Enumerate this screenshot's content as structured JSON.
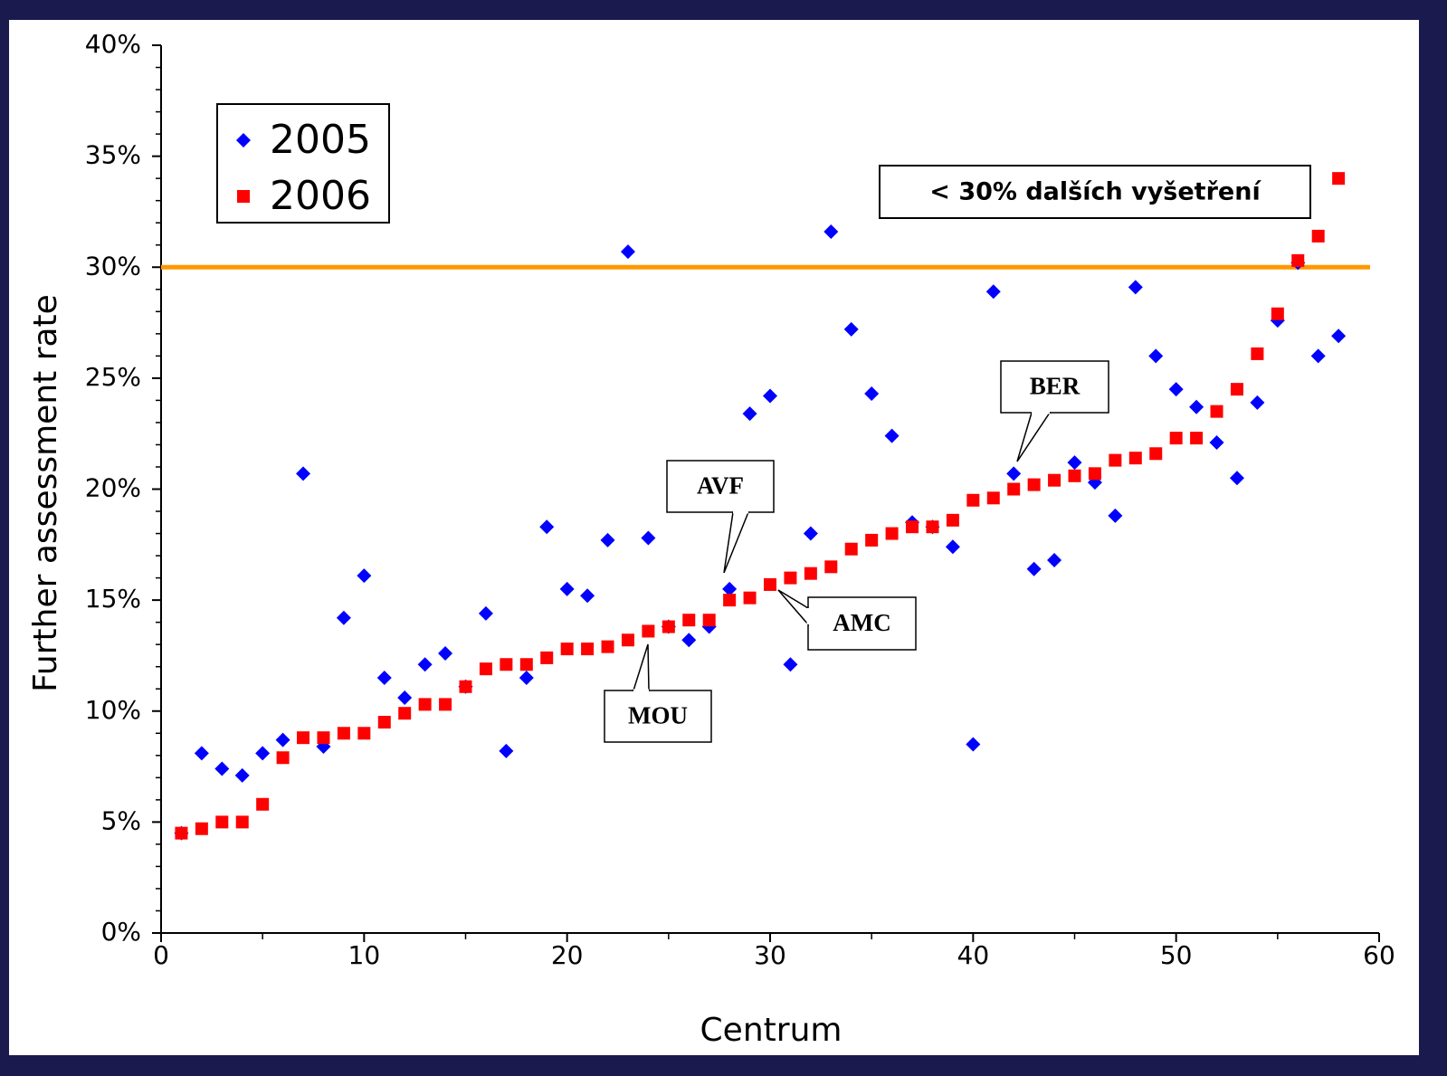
{
  "chart_data": {
    "type": "scatter",
    "xlabel": "Centrum",
    "ylabel": "Further assessment rate",
    "x": [
      1,
      2,
      3,
      4,
      5,
      6,
      7,
      8,
      9,
      10,
      11,
      12,
      13,
      14,
      15,
      16,
      17,
      18,
      19,
      20,
      21,
      22,
      23,
      24,
      25,
      26,
      27,
      28,
      29,
      30,
      31,
      32,
      33,
      34,
      35,
      36,
      37,
      38,
      39,
      40,
      41,
      42,
      43,
      44,
      45,
      46,
      47,
      48,
      49,
      50,
      51,
      52,
      53,
      54,
      55,
      56,
      57,
      58
    ],
    "series": [
      {
        "name": "2005",
        "color": "#0000ff",
        "marker": "diamond",
        "values": [
          4.5,
          8.1,
          7.4,
          7.1,
          8.1,
          8.7,
          20.7,
          8.4,
          14.2,
          16.1,
          11.5,
          10.6,
          12.1,
          12.6,
          11.1,
          14.4,
          8.2,
          11.5,
          18.3,
          15.5,
          15.2,
          17.7,
          30.7,
          17.8,
          13.8,
          13.2,
          13.8,
          15.5,
          23.4,
          24.2,
          12.1,
          18.0,
          31.6,
          27.2,
          24.3,
          22.4,
          18.5,
          18.3,
          17.4,
          8.5,
          28.9,
          20.7,
          16.4,
          16.8,
          21.2,
          20.3,
          18.8,
          29.1,
          26.0,
          24.5,
          23.7,
          22.1,
          20.5,
          23.9,
          27.6,
          30.2,
          26.0,
          26.9
        ]
      },
      {
        "name": "2006",
        "color": "#ff0000",
        "marker": "square",
        "values": [
          4.5,
          4.7,
          5.0,
          5.0,
          5.8,
          7.9,
          8.8,
          8.8,
          9.0,
          9.0,
          9.5,
          9.9,
          10.3,
          10.3,
          11.1,
          11.9,
          12.1,
          12.1,
          12.4,
          12.8,
          12.8,
          12.9,
          13.2,
          13.6,
          13.8,
          14.1,
          14.1,
          15.0,
          15.1,
          15.7,
          16.0,
          16.2,
          16.5,
          17.3,
          17.7,
          18.0,
          18.3,
          18.3,
          18.6,
          19.5,
          19.6,
          20.0,
          20.2,
          20.4,
          20.6,
          20.7,
          21.3,
          21.4,
          21.6,
          22.3,
          22.3,
          23.5,
          24.5,
          26.1,
          27.9,
          30.3,
          31.4,
          34.0
        ]
      }
    ],
    "xlim": [
      0,
      60
    ],
    "xticks": [
      0,
      10,
      20,
      30,
      40,
      50,
      60
    ],
    "ylim": [
      0,
      40
    ],
    "yticks": [
      {
        "value": 0,
        "label": "0%"
      },
      {
        "value": 5,
        "label": "5%"
      },
      {
        "value": 10,
        "label": "10%"
      },
      {
        "value": 15,
        "label": "15%"
      },
      {
        "value": 20,
        "label": "20%"
      },
      {
        "value": 25,
        "label": "25%"
      },
      {
        "value": 30,
        "label": "30%"
      },
      {
        "value": 35,
        "label": "35%"
      },
      {
        "value": 40,
        "label": "40%"
      }
    ],
    "reference_line": {
      "value": 30,
      "color": "#ff9900",
      "label": "< 30% dalších vyšetření"
    },
    "callouts": [
      "AVF",
      "AMC",
      "MOU",
      "BER"
    ]
  }
}
